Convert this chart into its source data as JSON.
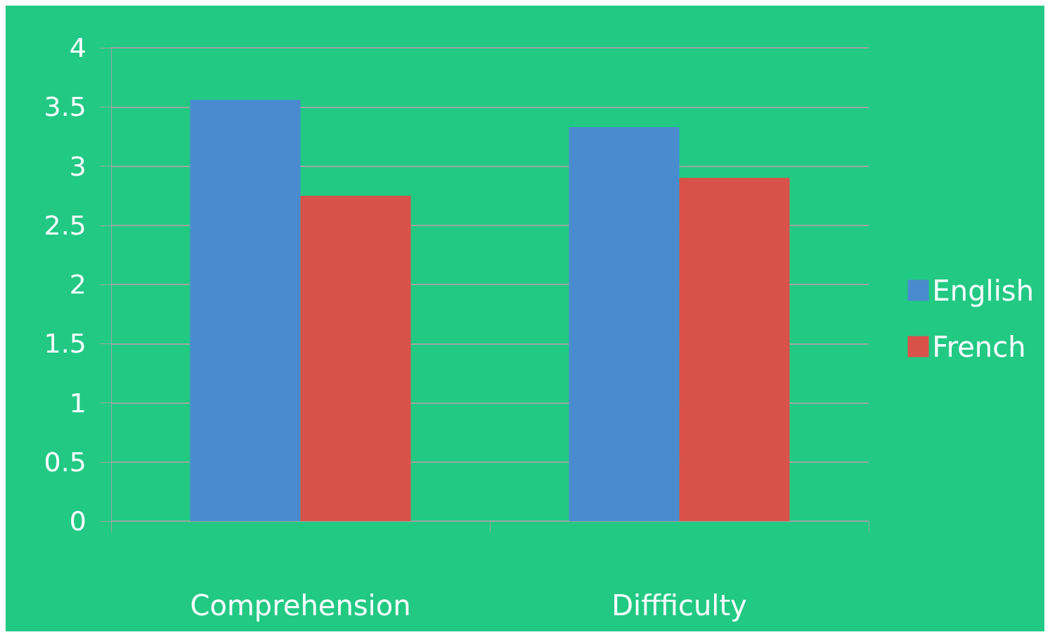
{
  "chart_data": {
    "type": "bar",
    "categories": [
      "Comprehension",
      "Diffficulty"
    ],
    "series": [
      {
        "name": "English",
        "color": "#4a8bd0",
        "values": [
          3.56,
          3.33
        ]
      },
      {
        "name": "French",
        "color": "#d8524a",
        "values": [
          2.75,
          2.9
        ]
      }
    ],
    "ylim": [
      0,
      4
    ],
    "yticks": [
      0,
      0.5,
      1,
      1.5,
      2,
      2.5,
      3,
      3.5,
      4
    ],
    "grid": "y",
    "legend": "right"
  }
}
